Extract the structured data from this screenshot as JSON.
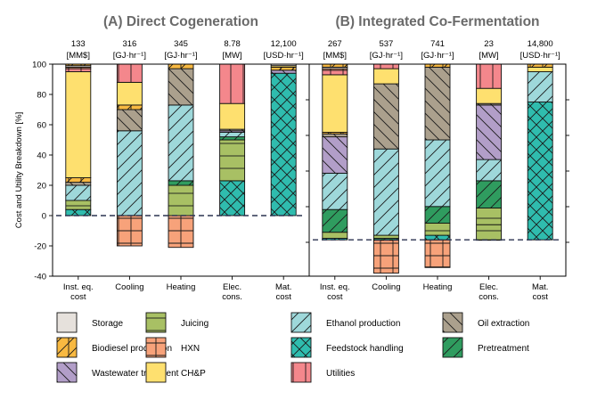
{
  "chart_data": {
    "type": "bar",
    "stacked": true,
    "ylabel": "Cost and Utility Breakdown [%]",
    "ylim": [
      -40,
      100
    ],
    "yticks": [
      -40,
      -20,
      0,
      20,
      40,
      60,
      80,
      100
    ],
    "grid": false,
    "legend_position": "bottom",
    "categories": [
      [
        "Inst. eq.",
        "cost"
      ],
      [
        "Cooling"
      ],
      [
        "Heating"
      ],
      [
        "Elec.",
        "cons."
      ],
      [
        "Mat.",
        "cost"
      ]
    ],
    "legend_order": [
      "Storage",
      "Biodiesel production",
      "Wastewater treatment",
      "Juicing",
      "HXN",
      "CH&P",
      "Ethanol production",
      "Feedstock handling",
      "Utilities",
      "Oil extraction",
      "Pretreatment"
    ],
    "series_styles": {
      "Storage": {
        "color": "#e6e1dc",
        "hatch": "none"
      },
      "HXN": {
        "color": "#f7a27a",
        "hatch": "grid"
      },
      "Utilities": {
        "color": "#f4878c",
        "hatch": "vertical"
      },
      "Biodiesel production": {
        "color": "#f8b941",
        "hatch": "vertical-slash"
      },
      "CH&P": {
        "color": "#fee06f",
        "hatch": "none"
      },
      "Oil extraction": {
        "color": "#aba08d",
        "hatch": "backslash"
      },
      "Wastewater treatment": {
        "color": "#b29ec8",
        "hatch": "backslash"
      },
      "Ethanol production": {
        "color": "#9ed8da",
        "hatch": "slash"
      },
      "Pretreatment": {
        "color": "#2f9c5f",
        "hatch": "slash"
      },
      "Juicing": {
        "color": "#a8c064",
        "hatch": "horizontal"
      },
      "Feedstock handling": {
        "color": "#2fbcae",
        "hatch": "cross"
      }
    },
    "panels": [
      {
        "title": "(A) Direct Cogeneration",
        "baseline_percent": 0,
        "totals": [
          [
            "133",
            "[MM$]"
          ],
          [
            "316",
            "[GJ·hr⁻¹]"
          ],
          [
            "345",
            "[GJ·hr⁻¹]"
          ],
          [
            "8.78",
            "[MW]"
          ],
          [
            "12,100",
            "[USD·hr⁻¹]"
          ]
        ],
        "bars": [
          [
            [
              "Feedstock handling",
              4
            ],
            [
              "Juicing",
              6
            ],
            [
              "Ethanol production",
              10
            ],
            [
              "Oil extraction",
              2
            ],
            [
              "Biodiesel production",
              3
            ],
            [
              "CH&P",
              70
            ],
            [
              "Utilities",
              2
            ],
            [
              "HXN",
              1
            ],
            [
              "Storage",
              1
            ],
            [
              "Biodiesel production",
              1
            ]
          ],
          [
            [
              "HXN",
              -20
            ],
            [
              "Ethanol production",
              56
            ],
            [
              "Oil extraction",
              14
            ],
            [
              "Biodiesel production",
              3
            ],
            [
              "CH&P",
              15
            ],
            [
              "Utilities",
              12
            ]
          ],
          [
            [
              "HXN",
              -21
            ],
            [
              "Juicing",
              20
            ],
            [
              "Pretreatment",
              3
            ],
            [
              "Ethanol production",
              50
            ],
            [
              "Oil extraction",
              24
            ],
            [
              "Biodiesel production",
              3
            ]
          ],
          [
            [
              "Feedstock handling",
              23
            ],
            [
              "Juicing",
              27
            ],
            [
              "Pretreatment",
              2
            ],
            [
              "Ethanol production",
              3
            ],
            [
              "Wastewater treatment",
              1
            ],
            [
              "Oil extraction",
              1
            ],
            [
              "CH&P",
              17
            ],
            [
              "Utilities",
              26
            ]
          ],
          [
            [
              "Feedstock handling",
              94
            ],
            [
              "Wastewater treatment",
              2
            ],
            [
              "Biodiesel production",
              2
            ],
            [
              "CH&P",
              1
            ],
            [
              "Storage",
              1
            ]
          ]
        ]
      },
      {
        "title": "(B) Integrated Co-Fermentation",
        "baseline_percent": -16,
        "totals": [
          [
            "267",
            "[MM$]"
          ],
          [
            "537",
            "[GJ·hr⁻¹]"
          ],
          [
            "741",
            "[GJ·hr⁻¹]"
          ],
          [
            "23",
            "[MW]"
          ],
          [
            "14,800",
            "[USD·hr⁻¹]"
          ]
        ],
        "bars": [
          [
            [
              "Feedstock handling",
              -15
            ],
            [
              "Juicing",
              -11
            ],
            [
              "Pretreatment",
              4
            ],
            [
              "Ethanol production",
              28
            ],
            [
              "Wastewater treatment",
              52
            ],
            [
              "Oil extraction",
              54
            ],
            [
              "Biodiesel production",
              55
            ],
            [
              "CH&P",
              93
            ],
            [
              "Utilities",
              96
            ],
            [
              "HXN",
              97
            ],
            [
              "Storage",
              98
            ],
            [
              "Biodiesel production",
              100
            ]
          ],
          [
            [
              "HXN",
              -38
            ],
            [
              "Utilities",
              -16
            ],
            [
              "Pretreatment",
              -15
            ],
            [
              "Juicing",
              -13
            ],
            [
              "Ethanol production",
              44
            ],
            [
              "Oil extraction",
              87
            ],
            [
              "CH&P",
              97
            ],
            [
              "Utilities",
              100
            ]
          ],
          [
            [
              "HXN",
              -34
            ],
            [
              "Juicing",
              -23
            ],
            [
              "Feedstock handling",
              -13
            ],
            [
              "Juicing",
              -5
            ],
            [
              "Pretreatment",
              6
            ],
            [
              "Ethanol production",
              50
            ],
            [
              "Oil extraction",
              98
            ],
            [
              "Biodiesel production",
              100
            ]
          ],
          [
            [
              "Feedstock handling",
              -16
            ],
            [
              "Juicing",
              -6
            ],
            [
              "Juicing",
              5
            ],
            [
              "Pretreatment",
              23
            ],
            [
              "Ethanol production",
              37
            ],
            [
              "Wastewater treatment",
              73
            ],
            [
              "Oil extraction",
              74
            ],
            [
              "CH&P",
              84
            ],
            [
              "Utilities",
              100
            ]
          ],
          [
            [
              "Feedstock handling",
              75
            ],
            [
              "Ethanol production",
              95
            ],
            [
              "CH&P",
              98
            ],
            [
              "Biodiesel production",
              100
            ]
          ]
        ]
      }
    ]
  }
}
